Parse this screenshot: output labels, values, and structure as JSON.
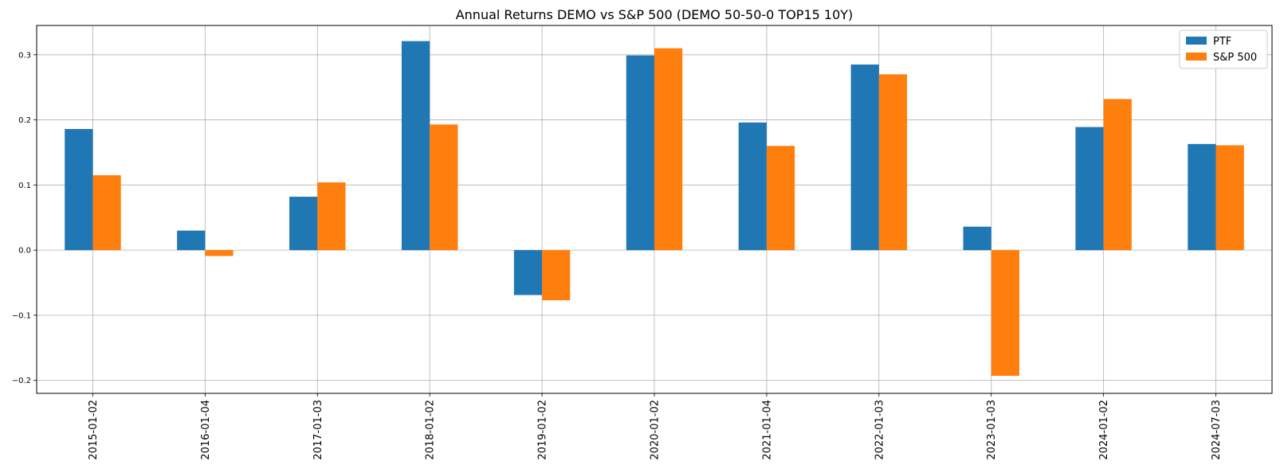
{
  "chart_data": {
    "type": "bar",
    "title": "Annual Returns DEMO vs S&P 500 (DEMO 50-50-0 TOP15 10Y)",
    "xlabel": "",
    "ylabel": "",
    "categories": [
      "2015-01-02",
      "2016-01-04",
      "2017-01-03",
      "2018-01-02",
      "2019-01-02",
      "2020-01-02",
      "2021-01-04",
      "2022-01-03",
      "2023-01-03",
      "2024-01-02",
      "2024-07-03"
    ],
    "series": [
      {
        "name": "PTF",
        "color": "#1f77b4",
        "values": [
          0.186,
          0.03,
          0.082,
          0.321,
          -0.069,
          0.299,
          0.196,
          0.285,
          0.036,
          0.189,
          0.163
        ]
      },
      {
        "name": "S&P 500",
        "color": "#ff7f0e",
        "values": [
          0.115,
          -0.009,
          0.104,
          0.193,
          -0.077,
          0.31,
          0.16,
          0.27,
          -0.193,
          0.232,
          0.161
        ]
      }
    ],
    "ylim": [
      -0.22,
      0.345
    ],
    "yticks": [
      -0.2,
      -0.1,
      0.0,
      0.1,
      0.2,
      0.3
    ],
    "ytick_labels": [
      "−0.2",
      "−0.1",
      "0.0",
      "0.1",
      "0.2",
      "0.3"
    ],
    "grid": true,
    "legend_position": "top-right"
  }
}
